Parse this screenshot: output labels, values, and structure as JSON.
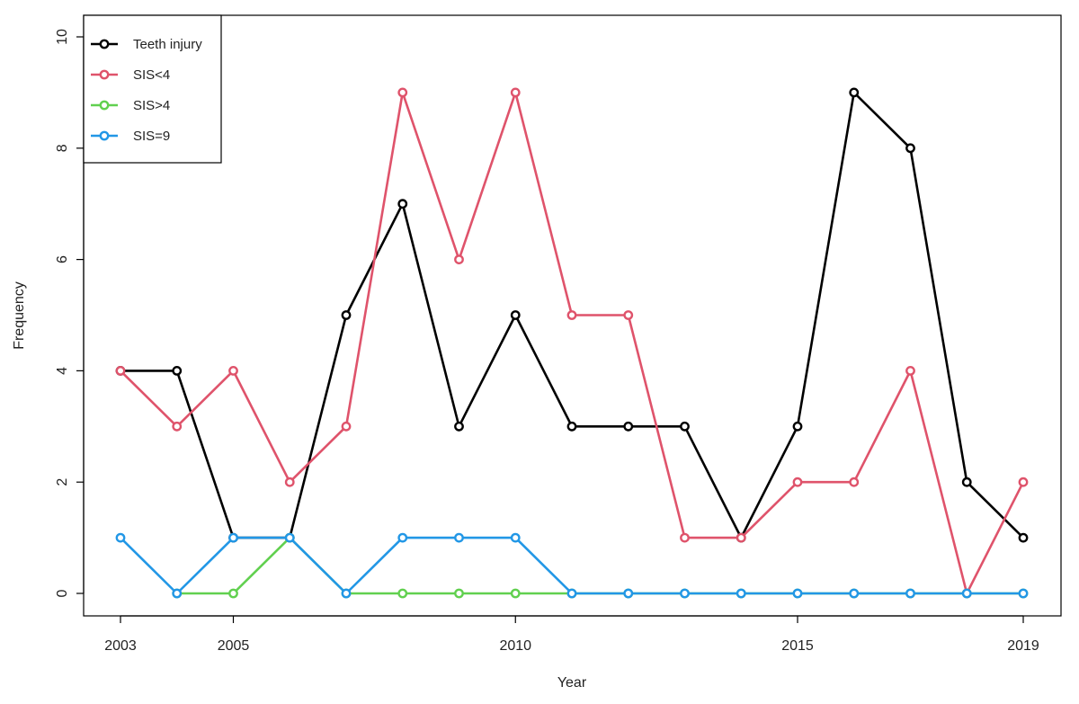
{
  "chart_data": {
    "type": "line",
    "title": "",
    "xlabel": "Year",
    "ylabel": "Frequency",
    "x": [
      2003,
      2004,
      2005,
      2006,
      2007,
      2008,
      2009,
      2010,
      2011,
      2012,
      2013,
      2014,
      2015,
      2016,
      2017,
      2018,
      2019
    ],
    "xlim": [
      2003,
      2019
    ],
    "ylim": [
      0,
      10
    ],
    "x_ticks": [
      2003,
      2005,
      2010,
      2015,
      2019
    ],
    "y_ticks": [
      0,
      2,
      4,
      6,
      8,
      10
    ],
    "grid": false,
    "legend_position": "top-left",
    "series": [
      {
        "name": "Teeth injury",
        "color": "#000000",
        "values": [
          4,
          4,
          1,
          1,
          5,
          7,
          3,
          5,
          3,
          3,
          3,
          1,
          3,
          9,
          8,
          2,
          1
        ]
      },
      {
        "name": "SIS<4",
        "color": "#df536b",
        "values": [
          4,
          3,
          4,
          2,
          3,
          9,
          6,
          9,
          5,
          5,
          1,
          1,
          2,
          2,
          4,
          0,
          2
        ]
      },
      {
        "name": "SIS>4",
        "color": "#61d04f",
        "values": [
          null,
          0,
          0,
          1,
          0,
          0,
          0,
          0,
          0,
          0,
          0,
          0,
          0,
          0,
          0,
          0,
          0
        ]
      },
      {
        "name": "SIS=9",
        "color": "#2297e6",
        "values": [
          1,
          0,
          1,
          1,
          0,
          1,
          1,
          1,
          0,
          0,
          0,
          0,
          0,
          0,
          0,
          0,
          0
        ]
      }
    ]
  }
}
